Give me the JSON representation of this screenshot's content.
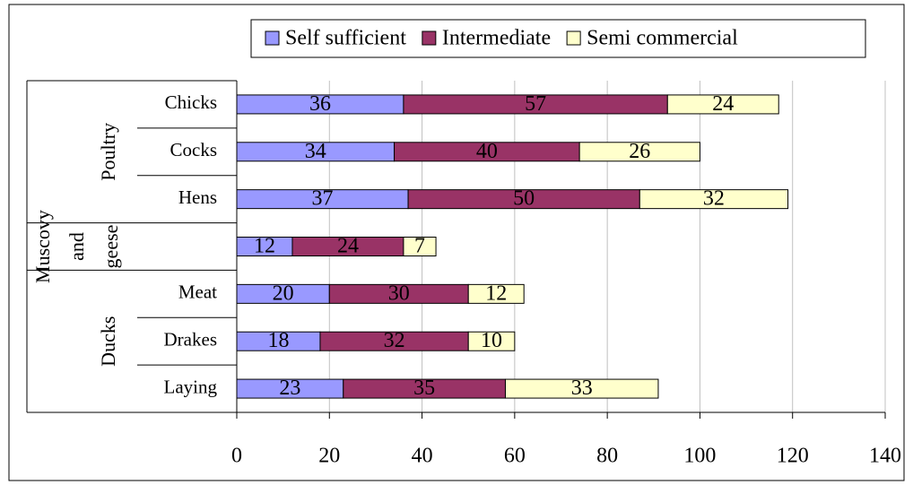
{
  "chart_data": {
    "type": "stacked-bar-horizontal",
    "categories": [
      "Chicks",
      "Cocks",
      "Hens",
      null,
      "Meat",
      "Drakes",
      "Laying"
    ],
    "category_groups": [
      [
        "Poultry"
      ],
      [
        "Muscovy",
        "and",
        "geese"
      ],
      [
        "Ducks"
      ]
    ],
    "series": [
      {
        "name": "Self sufficient",
        "color": "#9999ff",
        "values": [
          36,
          34,
          37,
          12,
          20,
          18,
          23
        ]
      },
      {
        "name": "Intermediate",
        "color": "#993366",
        "values": [
          57,
          40,
          50,
          24,
          30,
          32,
          35
        ]
      },
      {
        "name": "Semi commercial",
        "color": "#ffffcc",
        "values": [
          24,
          26,
          32,
          7,
          12,
          10,
          33
        ]
      }
    ],
    "xlim": [
      0,
      140
    ],
    "xticks": [
      0,
      20,
      40,
      60,
      80,
      100,
      120,
      140
    ],
    "grid": true,
    "legend": "top"
  }
}
